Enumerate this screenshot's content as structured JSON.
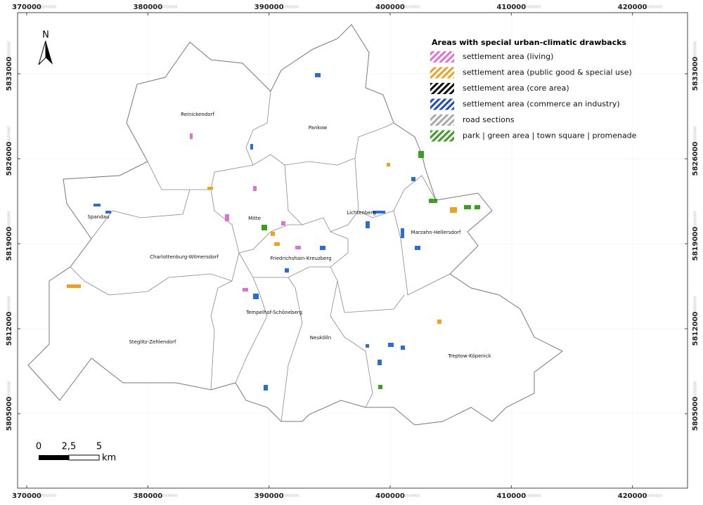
{
  "north": "N",
  "x_ticks": [
    370000,
    380000,
    390000,
    400000,
    410000,
    420000
  ],
  "y_ticks": [
    5833000,
    5826000,
    5819000,
    5812000,
    5805000
  ],
  "tick_suffix": "0000000",
  "legend": {
    "title": "Areas with special urban-climatic drawbacks",
    "items": [
      {
        "label": "settlement area (living)",
        "color": "#e070d8"
      },
      {
        "label": "settlement area (public good & special use)",
        "color": "#f0a020"
      },
      {
        "label": "settlement area (core area)",
        "color": "#111111"
      },
      {
        "label": "settlement area (commerce an industry)",
        "color": "#1f4fbf"
      },
      {
        "label": "road sections",
        "color": "#aaaaaa"
      },
      {
        "label": "park | green area | town square | promenade",
        "color": "#3aa020"
      }
    ]
  },
  "districts": [
    "Reinickendorf",
    "Pankow",
    "Spandau",
    "Mitte",
    "Lichtenberg",
    "Marzahn-Hellersdorf",
    "Charlottenburg-Wilmersdorf",
    "Friedrichshain-Kreuzberg",
    "Tempelhof-Schöneberg",
    "Steglitz-Zehlendorf",
    "Neukölln",
    "Treptow-Köpenick"
  ],
  "scale_bar": {
    "labels": [
      "0",
      "2,5",
      "5"
    ],
    "unit": "km"
  }
}
